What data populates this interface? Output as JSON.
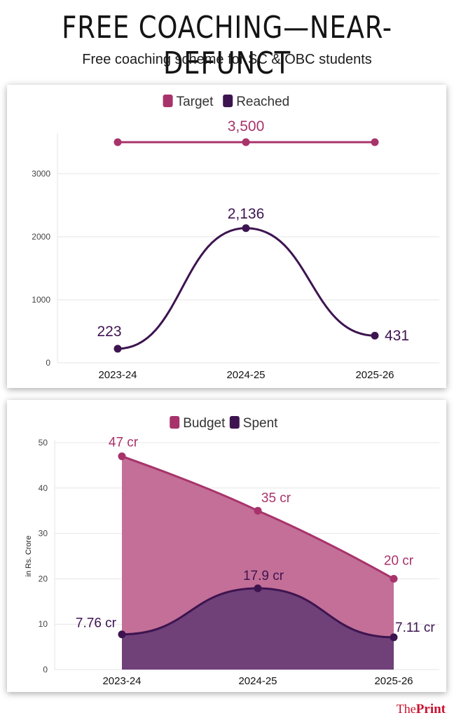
{
  "header": {
    "title": "FREE COACHING—NEAR-DEFUNCT",
    "subtitle": "Free coaching scheme for SC & OBC students"
  },
  "colors": {
    "target": "#a8336b",
    "reached": "#3d1450",
    "budget": "#a8336b",
    "budget_fill": "#c36f97",
    "spent": "#3d1450",
    "spent_fill": "#704079",
    "grid": "#e6e6e6",
    "brand": "#c8102e"
  },
  "chart_data": [
    {
      "type": "line",
      "categories": [
        "2023-24",
        "2024-25",
        "2025-26"
      ],
      "series": [
        {
          "name": "Target",
          "values": [
            3500,
            3500,
            3500
          ],
          "labels": [
            "",
            "3,500",
            ""
          ]
        },
        {
          "name": "Reached",
          "values": [
            223,
            2136,
            431
          ],
          "labels": [
            "223",
            "2,136",
            "431"
          ]
        }
      ],
      "yticks": [
        0,
        1000,
        2000,
        3000
      ],
      "ytick_labels": [
        "0",
        "1000",
        "2000",
        "3000"
      ],
      "ylim": [
        0,
        3600
      ],
      "legend": "top-center",
      "grid": true
    },
    {
      "type": "area",
      "categories": [
        "2023-24",
        "2024-25",
        "2025-26"
      ],
      "series": [
        {
          "name": "Budget",
          "values": [
            47,
            35,
            20
          ],
          "labels": [
            "47 cr",
            "35 cr",
            "20 cr"
          ]
        },
        {
          "name": "Spent",
          "values": [
            7.76,
            17.9,
            7.11
          ],
          "labels": [
            "7.76 cr",
            "17.9 cr",
            "7.11 cr"
          ]
        }
      ],
      "ylabel": "in Rs. Crore",
      "yticks": [
        0,
        10,
        20,
        30,
        40,
        50
      ],
      "ytick_labels": [
        "0",
        "10",
        "20",
        "30",
        "40",
        "50"
      ],
      "ylim": [
        0,
        50
      ],
      "legend": "top-center",
      "grid": true
    }
  ],
  "credit": {
    "prefix": "The",
    "name": "Print"
  }
}
